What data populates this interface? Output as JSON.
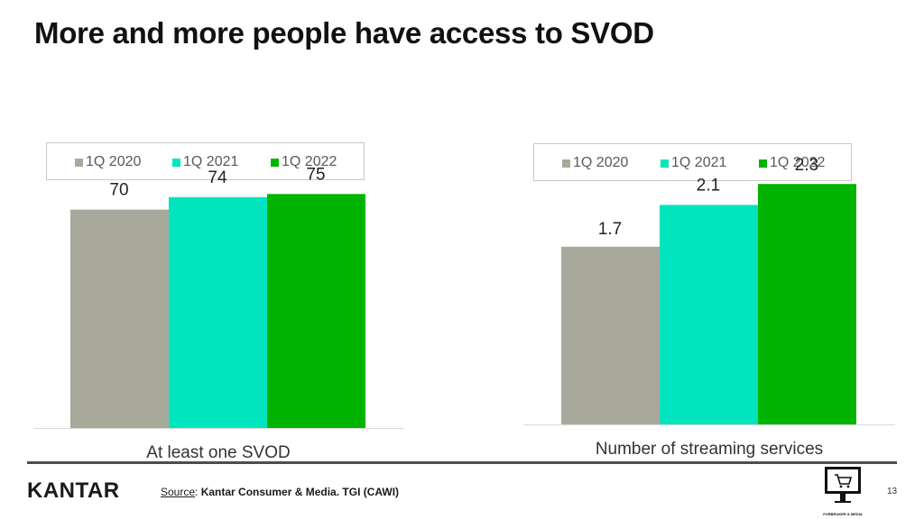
{
  "title": "More and more people have access to SVOD",
  "colors": {
    "1Q 2020": "#a9a99b",
    "1Q 2021": "#00e5bd",
    "1Q 2022": "#00b400"
  },
  "legend": [
    "1Q 2020",
    "1Q 2021",
    "1Q 2022"
  ],
  "chart_data": [
    {
      "type": "bar",
      "categories": [
        "At least one SVOD"
      ],
      "series": [
        {
          "name": "1Q 2020",
          "values": [
            70
          ]
        },
        {
          "name": "1Q 2021",
          "values": [
            74
          ]
        },
        {
          "name": "1Q 2022",
          "values": [
            75
          ]
        }
      ],
      "legend_position": "top",
      "ylim": [
        0,
        80
      ]
    },
    {
      "type": "bar",
      "categories": [
        "Number of streaming services"
      ],
      "series": [
        {
          "name": "1Q 2020",
          "values": [
            1.7
          ]
        },
        {
          "name": "1Q 2021",
          "values": [
            2.1
          ]
        },
        {
          "name": "1Q 2022",
          "values": [
            2.3
          ]
        }
      ],
      "legend_position": "top",
      "ylim": [
        0,
        2.5
      ]
    }
  ],
  "footer": {
    "logo": "KANTAR",
    "source_key": "Source",
    "source_sep": ": ",
    "source_value": "Kantar Consumer & Media. TGI (CAWI)",
    "page_number": "13",
    "badge_text": "FORBRUKER & MEDIA"
  }
}
